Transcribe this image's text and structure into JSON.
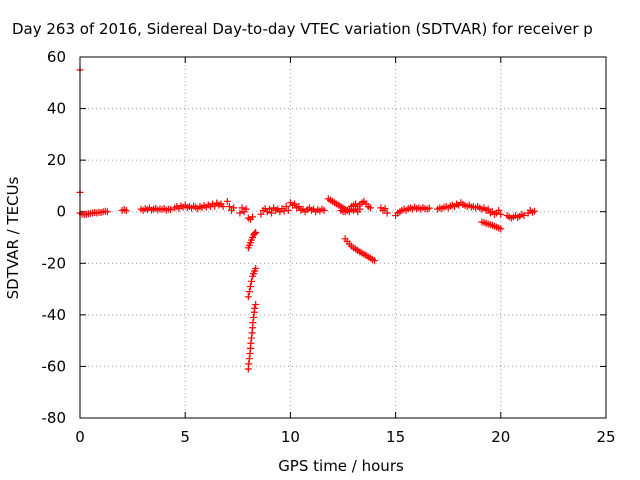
{
  "chart_data": {
    "type": "scatter",
    "title": "Day 263 of 2016, Sidereal Day-to-day VTEC variation (SDTVAR) for receiver p",
    "xlabel": "GPS time / hours",
    "ylabel": "SDTVAR / TECUs",
    "xlim": [
      0,
      25
    ],
    "ylim": [
      -80,
      60
    ],
    "xticks": [
      0,
      5,
      10,
      15,
      20,
      25
    ],
    "yticks": [
      -80,
      -60,
      -40,
      -20,
      0,
      20,
      40,
      60
    ],
    "grid": true,
    "marker": "+",
    "series": [
      {
        "color": "#ff0000",
        "points": [
          [
            0.0,
            55.0
          ],
          [
            0.0,
            7.5
          ],
          [
            0.0,
            -0.5
          ],
          [
            0.1,
            -1.0
          ],
          [
            0.2,
            -1.2
          ],
          [
            0.3,
            -1.0
          ],
          [
            0.4,
            -0.8
          ],
          [
            0.5,
            -0.6
          ],
          [
            0.6,
            -0.5
          ],
          [
            0.7,
            -0.3
          ],
          [
            0.8,
            -0.5
          ],
          [
            0.9,
            -0.2
          ],
          [
            1.0,
            -0.3
          ],
          [
            1.1,
            0.0
          ],
          [
            1.2,
            0.2
          ],
          [
            1.3,
            0.0
          ],
          [
            2.0,
            0.5
          ],
          [
            2.1,
            0.8
          ],
          [
            2.2,
            0.4
          ],
          [
            2.9,
            1.0
          ],
          [
            3.0,
            0.5
          ],
          [
            3.1,
            1.2
          ],
          [
            3.2,
            0.8
          ],
          [
            3.3,
            1.5
          ],
          [
            3.4,
            0.6
          ],
          [
            3.5,
            1.0
          ],
          [
            3.6,
            1.3
          ],
          [
            3.7,
            0.7
          ],
          [
            3.8,
            1.1
          ],
          [
            3.9,
            0.9
          ],
          [
            4.0,
            1.2
          ],
          [
            4.1,
            0.6
          ],
          [
            4.2,
            1.0
          ],
          [
            4.3,
            0.8
          ],
          [
            4.5,
            1.5
          ],
          [
            4.6,
            2.0
          ],
          [
            4.7,
            1.2
          ],
          [
            4.8,
            2.3
          ],
          [
            4.9,
            1.8
          ],
          [
            5.0,
            2.5
          ],
          [
            5.1,
            1.6
          ],
          [
            5.2,
            2.0
          ],
          [
            5.3,
            1.4
          ],
          [
            5.4,
            2.2
          ],
          [
            5.5,
            1.8
          ],
          [
            5.6,
            1.2
          ],
          [
            5.7,
            2.0
          ],
          [
            5.8,
            1.6
          ],
          [
            5.9,
            2.4
          ],
          [
            6.0,
            1.8
          ],
          [
            6.1,
            2.6
          ],
          [
            6.2,
            2.0
          ],
          [
            6.3,
            3.0
          ],
          [
            6.4,
            2.2
          ],
          [
            6.5,
            3.4
          ],
          [
            6.6,
            2.6
          ],
          [
            6.7,
            3.0
          ],
          [
            6.8,
            2.0
          ],
          [
            7.0,
            4.0
          ],
          [
            7.1,
            2.0
          ],
          [
            7.2,
            0.5
          ],
          [
            7.3,
            1.5
          ],
          [
            7.6,
            -0.5
          ],
          [
            7.7,
            1.5
          ],
          [
            7.8,
            0.0
          ],
          [
            7.9,
            1.0
          ],
          [
            8.0,
            -2.5
          ],
          [
            8.1,
            -3.0
          ],
          [
            8.2,
            -2.0
          ],
          [
            8.0,
            -14.0
          ],
          [
            8.05,
            -13.0
          ],
          [
            8.1,
            -12.0
          ],
          [
            8.15,
            -11.0
          ],
          [
            8.2,
            -10.0
          ],
          [
            8.25,
            -9.0
          ],
          [
            8.3,
            -8.5
          ],
          [
            8.35,
            -8.0
          ],
          [
            8.0,
            -33.0
          ],
          [
            8.05,
            -31.0
          ],
          [
            8.1,
            -29.0
          ],
          [
            8.15,
            -27.0
          ],
          [
            8.2,
            -25.0
          ],
          [
            8.25,
            -24.0
          ],
          [
            8.3,
            -23.0
          ],
          [
            8.35,
            -22.0
          ],
          [
            8.0,
            -61.0
          ],
          [
            8.02,
            -59.0
          ],
          [
            8.05,
            -57.0
          ],
          [
            8.08,
            -55.0
          ],
          [
            8.1,
            -53.0
          ],
          [
            8.12,
            -51.0
          ],
          [
            8.15,
            -49.0
          ],
          [
            8.18,
            -47.0
          ],
          [
            8.2,
            -45.0
          ],
          [
            8.22,
            -43.0
          ],
          [
            8.25,
            -41.0
          ],
          [
            8.28,
            -39.0
          ],
          [
            8.3,
            -37.5
          ],
          [
            8.35,
            -36.0
          ],
          [
            8.6,
            -1.0
          ],
          [
            8.7,
            0.5
          ],
          [
            8.8,
            1.2
          ],
          [
            8.9,
            0.0
          ],
          [
            9.0,
            1.0
          ],
          [
            9.1,
            -0.5
          ],
          [
            9.2,
            1.5
          ],
          [
            9.3,
            0.5
          ],
          [
            9.4,
            1.0
          ],
          [
            9.5,
            0.0
          ],
          [
            9.6,
            1.2
          ],
          [
            9.7,
            0.3
          ],
          [
            9.8,
            2.0
          ],
          [
            9.9,
            0.5
          ],
          [
            10.0,
            3.5
          ],
          [
            10.1,
            2.5
          ],
          [
            10.2,
            3.0
          ],
          [
            10.3,
            1.5
          ],
          [
            10.4,
            2.0
          ],
          [
            10.5,
            0.5
          ],
          [
            10.6,
            1.0
          ],
          [
            10.7,
            0.0
          ],
          [
            10.8,
            0.8
          ],
          [
            10.9,
            1.5
          ],
          [
            11.0,
            0.5
          ],
          [
            11.1,
            1.0
          ],
          [
            11.2,
            0.0
          ],
          [
            11.3,
            0.8
          ],
          [
            11.4,
            0.3
          ],
          [
            11.5,
            1.0
          ],
          [
            11.6,
            0.5
          ],
          [
            11.8,
            5.0
          ],
          [
            11.9,
            4.5
          ],
          [
            12.0,
            4.0
          ],
          [
            12.1,
            3.5
          ],
          [
            12.2,
            3.0
          ],
          [
            12.3,
            2.5
          ],
          [
            12.4,
            2.0
          ],
          [
            12.5,
            1.5
          ],
          [
            12.6,
            1.0
          ],
          [
            12.7,
            0.5
          ],
          [
            12.8,
            1.0
          ],
          [
            12.9,
            2.0
          ],
          [
            13.0,
            2.5
          ],
          [
            13.1,
            3.0
          ],
          [
            13.2,
            2.0
          ],
          [
            13.3,
            2.8
          ],
          [
            13.4,
            3.5
          ],
          [
            13.5,
            4.0
          ],
          [
            13.6,
            3.0
          ],
          [
            13.7,
            2.0
          ],
          [
            13.8,
            1.5
          ],
          [
            12.4,
            0.5
          ],
          [
            12.5,
            0.0
          ],
          [
            12.6,
            0.0
          ],
          [
            12.7,
            0.5
          ],
          [
            12.8,
            0.0
          ],
          [
            12.9,
            1.0
          ],
          [
            13.0,
            0.5
          ],
          [
            13.1,
            1.0
          ],
          [
            13.2,
            0.0
          ],
          [
            13.3,
            1.0
          ],
          [
            12.6,
            -10.5
          ],
          [
            12.7,
            -11.5
          ],
          [
            12.8,
            -12.5
          ],
          [
            12.9,
            -13.3
          ],
          [
            13.0,
            -14.0
          ],
          [
            13.1,
            -14.5
          ],
          [
            13.2,
            -15.0
          ],
          [
            13.3,
            -15.6
          ],
          [
            13.4,
            -16.0
          ],
          [
            13.5,
            -16.5
          ],
          [
            13.6,
            -17.0
          ],
          [
            13.7,
            -17.5
          ],
          [
            13.8,
            -18.0
          ],
          [
            13.9,
            -18.5
          ],
          [
            14.0,
            -19.0
          ],
          [
            14.3,
            1.5
          ],
          [
            14.4,
            0.5
          ],
          [
            14.5,
            1.2
          ],
          [
            14.6,
            -0.5
          ],
          [
            15.0,
            -1.5
          ],
          [
            15.1,
            -0.5
          ],
          [
            15.2,
            0.0
          ],
          [
            15.3,
            0.5
          ],
          [
            15.4,
            1.0
          ],
          [
            15.5,
            0.5
          ],
          [
            15.6,
            1.2
          ],
          [
            15.7,
            1.5
          ],
          [
            15.8,
            1.0
          ],
          [
            15.9,
            1.8
          ],
          [
            16.0,
            1.2
          ],
          [
            16.1,
            1.5
          ],
          [
            16.2,
            1.0
          ],
          [
            16.3,
            1.6
          ],
          [
            16.4,
            1.2
          ],
          [
            16.5,
            1.0
          ],
          [
            16.6,
            1.4
          ],
          [
            17.0,
            1.0
          ],
          [
            17.1,
            1.5
          ],
          [
            17.2,
            1.2
          ],
          [
            17.3,
            1.8
          ],
          [
            17.4,
            2.0
          ],
          [
            17.5,
            1.5
          ],
          [
            17.6,
            2.2
          ],
          [
            17.7,
            2.5
          ],
          [
            17.8,
            2.0
          ],
          [
            17.9,
            3.0
          ],
          [
            18.0,
            2.5
          ],
          [
            18.1,
            3.5
          ],
          [
            18.2,
            2.8
          ],
          [
            18.3,
            2.5
          ],
          [
            18.4,
            2.0
          ],
          [
            18.5,
            2.5
          ],
          [
            18.6,
            1.8
          ],
          [
            18.7,
            2.0
          ],
          [
            18.8,
            1.5
          ],
          [
            18.9,
            2.0
          ],
          [
            19.0,
            1.5
          ],
          [
            19.1,
            1.0
          ],
          [
            19.2,
            1.5
          ],
          [
            19.3,
            0.5
          ],
          [
            19.4,
            1.0
          ],
          [
            19.5,
            -0.5
          ],
          [
            19.6,
            0.0
          ],
          [
            19.7,
            -1.0
          ],
          [
            19.8,
            -0.5
          ],
          [
            19.9,
            0.5
          ],
          [
            20.0,
            -1.0
          ],
          [
            19.1,
            -4.0
          ],
          [
            19.2,
            -4.2
          ],
          [
            19.3,
            -4.5
          ],
          [
            19.4,
            -4.8
          ],
          [
            19.5,
            -5.0
          ],
          [
            19.6,
            -5.3
          ],
          [
            19.7,
            -5.6
          ],
          [
            19.8,
            -6.0
          ],
          [
            19.9,
            -6.3
          ],
          [
            20.0,
            -6.6
          ],
          [
            20.3,
            -1.5
          ],
          [
            20.4,
            -2.0
          ],
          [
            20.5,
            -2.5
          ],
          [
            20.6,
            -2.0
          ],
          [
            20.7,
            -1.5
          ],
          [
            20.8,
            -2.2
          ],
          [
            20.9,
            -1.8
          ],
          [
            21.0,
            -1.0
          ],
          [
            21.1,
            -1.5
          ],
          [
            21.3,
            -0.5
          ],
          [
            21.4,
            0.5
          ],
          [
            21.5,
            -0.2
          ],
          [
            21.6,
            0.2
          ]
        ]
      }
    ]
  }
}
